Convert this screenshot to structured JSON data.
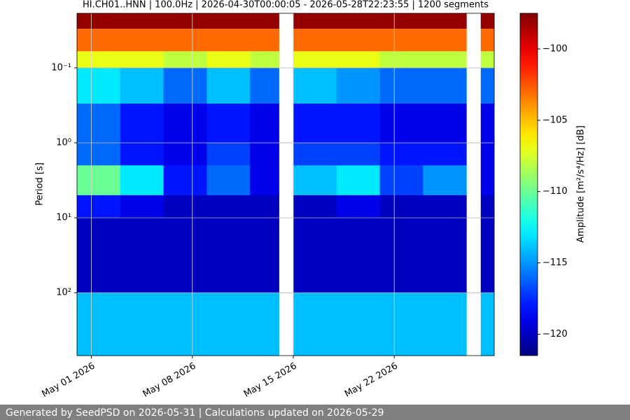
{
  "chart_data": {
    "type": "spectrogram",
    "title": "HI.CH01..HNN | 100.0Hz | 2026-04-30T00:00:05 - 2026-05-28T22:23:55 | 1200 segments",
    "y_label": "Period [s]",
    "colorbar_label": "Amplitude [m²/s⁴/Hz] [dB]",
    "colormap": "jet",
    "log_y": true,
    "invert_y": true,
    "grid": true,
    "xlim": [
      "2026-04-30T00:00:05",
      "2026-05-28T22:23:55"
    ],
    "xticks": [
      {
        "value": "2026-05-01",
        "label": "May 01 2026"
      },
      {
        "value": "2026-05-08",
        "label": "May 08 2026"
      },
      {
        "value": "2026-05-15",
        "label": "May 15 2026"
      },
      {
        "value": "2026-05-22",
        "label": "May 22 2026"
      }
    ],
    "ylim": [
      0.0187,
      690
    ],
    "yticks": [
      {
        "value": 0.1,
        "label": "10⁻¹"
      },
      {
        "value": 1,
        "label": "10⁰"
      },
      {
        "value": 10,
        "label": "10¹"
      },
      {
        "value": 100,
        "label": "10²"
      }
    ],
    "clim": [
      -121.5,
      -97.5
    ],
    "cticks": [
      {
        "value": -100,
        "label": "−100"
      },
      {
        "value": -105,
        "label": "−105"
      },
      {
        "value": -110,
        "label": "−110"
      },
      {
        "value": -115,
        "label": "−115"
      },
      {
        "value": -120,
        "label": "−120"
      }
    ],
    "bins": [
      "2026-04-30T00:00:05",
      "2026-05-03",
      "2026-05-06",
      "2026-05-09",
      "2026-05-12",
      "2026-05-14",
      "2026-05-15",
      "2026-05-18",
      "2026-05-21",
      "2026-05-24",
      "2026-05-27",
      "2026-05-28",
      "2026-05-28T22:23:55"
    ],
    "period_bins": [
      0.0187,
      0.03,
      0.06,
      0.1,
      0.3,
      1,
      2,
      5,
      10,
      100,
      690
    ],
    "values": [
      [
        -98,
        -98,
        -98,
        -98,
        -98,
        null,
        -98,
        -98,
        -98,
        -98,
        null,
        -98
      ],
      [
        -103,
        -103,
        -103,
        -103,
        -103,
        null,
        -103,
        -103,
        -103,
        -103,
        null,
        -103
      ],
      [
        -107,
        -107,
        -108,
        -107,
        -108,
        null,
        -107,
        -107,
        -108,
        -108,
        null,
        -108
      ],
      [
        -113,
        -114,
        -116,
        -114,
        -116,
        null,
        -114,
        -115,
        -116,
        -116,
        null,
        -116
      ],
      [
        -116,
        -118,
        -119,
        -118,
        -119,
        null,
        -118,
        -118,
        -119,
        -119,
        null,
        -119
      ],
      [
        -116,
        -118,
        -119,
        -117,
        -119,
        null,
        -117,
        -117,
        -118,
        -118,
        null,
        -119
      ],
      [
        -110,
        -113,
        -118,
        -116,
        -119,
        null,
        -114,
        -113,
        -117,
        -115,
        null,
        -119
      ],
      [
        -118,
        -119,
        -120,
        -120,
        -120,
        null,
        -120,
        -119,
        -120,
        -120,
        null,
        -120
      ],
      [
        -120,
        -120,
        -120,
        -120,
        -120,
        null,
        -120,
        -120,
        -120,
        -120,
        null,
        -120
      ],
      [
        -114,
        -114,
        -114,
        -114,
        -114,
        null,
        -114,
        -114,
        -114,
        -114,
        null,
        -114
      ]
    ]
  },
  "footer": "Generated by SeedPSD on 2026-05-31 | Calculations updated on 2026-05-29"
}
